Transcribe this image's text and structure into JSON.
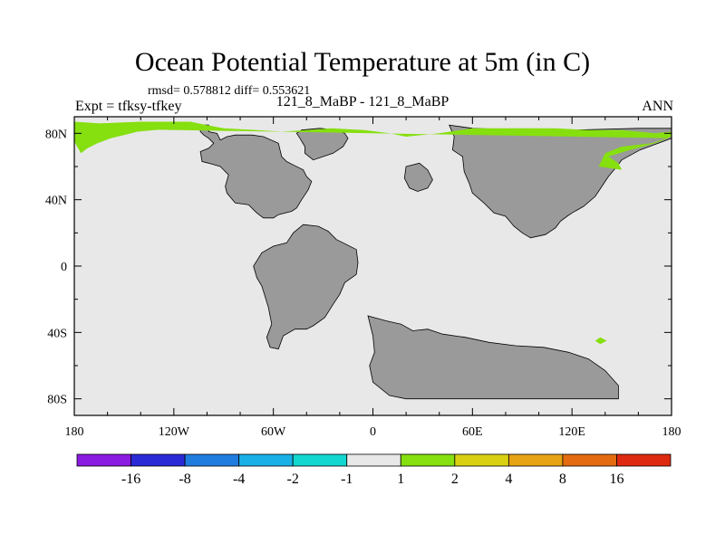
{
  "header": {
    "title": "Ocean Potential Temperature at 5m (in C)",
    "stats": "rmsd= 0.578812 diff= 0.553621",
    "expt": "Expt = tfksy-tfkey",
    "case": "121_8_MaBP - 121_8_MaBP",
    "season": "ANN"
  },
  "chart_data": {
    "type": "heatmap",
    "x_ticks": [
      "180",
      "120W",
      "60W",
      "0",
      "60E",
      "120E",
      "180"
    ],
    "y_ticks": [
      "80N",
      "40N",
      "0",
      "40S",
      "80S"
    ],
    "xlim": [
      -180,
      180
    ],
    "ylim": [
      -90,
      90
    ],
    "colorbar": {
      "labels": [
        "-16",
        "-8",
        "-4",
        "-2",
        "-1",
        "1",
        "2",
        "4",
        "8",
        "16"
      ],
      "colors": [
        "#8a1ae0",
        "#2a2ad6",
        "#1f7de0",
        "#18b0e6",
        "#12d6d0",
        "#e8e8e8",
        "#86df0f",
        "#d9d012",
        "#e6a213",
        "#e46b10",
        "#de2a10"
      ]
    },
    "colors": {
      "land": "#9a9a9a",
      "ocean_near_zero": "#e8e8e8",
      "warm_1_to_2": "#86df0f"
    },
    "land_masses": [
      {
        "name": "land-north-america",
        "poly": [
          [
            -99,
            85
          ],
          [
            -99,
            81
          ],
          [
            -94,
            80
          ],
          [
            -92,
            76
          ],
          [
            -88,
            78
          ],
          [
            -83,
            79
          ],
          [
            -73,
            79
          ],
          [
            -66,
            78
          ],
          [
            -57,
            74
          ],
          [
            -55,
            66
          ],
          [
            -52,
            63
          ],
          [
            -48,
            61
          ],
          [
            -42,
            58
          ],
          [
            -40,
            54
          ],
          [
            -37,
            51
          ],
          [
            -39,
            46
          ],
          [
            -43,
            40
          ],
          [
            -46,
            35
          ],
          [
            -49,
            33
          ],
          [
            -57,
            31
          ],
          [
            -60,
            29
          ],
          [
            -66,
            29
          ],
          [
            -70,
            32
          ],
          [
            -75,
            37
          ],
          [
            -83,
            38
          ],
          [
            -88,
            44
          ],
          [
            -89,
            48
          ],
          [
            -87,
            55
          ],
          [
            -92,
            60
          ],
          [
            -99,
            62
          ],
          [
            -103,
            63
          ],
          [
            -104,
            69
          ],
          [
            -99,
            71
          ],
          [
            -96,
            74
          ],
          [
            -99,
            77
          ],
          [
            -102,
            79
          ],
          [
            -104,
            81
          ],
          [
            -104,
            85
          ]
        ]
      },
      {
        "name": "land-greenland",
        "poly": [
          [
            -17,
            80
          ],
          [
            -15,
            77
          ],
          [
            -18,
            72
          ],
          [
            -24,
            68
          ],
          [
            -30,
            66
          ],
          [
            -36,
            64
          ],
          [
            -41,
            68
          ],
          [
            -41,
            72
          ],
          [
            -44,
            77
          ],
          [
            -46,
            80
          ],
          [
            -43,
            82
          ],
          [
            -32,
            83
          ],
          [
            -22,
            82
          ]
        ]
      },
      {
        "name": "land-south-america",
        "poly": [
          [
            -42,
            25
          ],
          [
            -33,
            24
          ],
          [
            -27,
            21
          ],
          [
            -22,
            16
          ],
          [
            -18,
            14
          ],
          [
            -10,
            10
          ],
          [
            -9,
            2
          ],
          [
            -10,
            -5
          ],
          [
            -17,
            -10
          ],
          [
            -20,
            -17
          ],
          [
            -24,
            -23
          ],
          [
            -29,
            -31
          ],
          [
            -36,
            -36
          ],
          [
            -40,
            -38
          ],
          [
            -47,
            -38
          ],
          [
            -54,
            -42
          ],
          [
            -57,
            -50
          ],
          [
            -62,
            -49
          ],
          [
            -64,
            -43
          ],
          [
            -61,
            -35
          ],
          [
            -63,
            -25
          ],
          [
            -67,
            -12
          ],
          [
            -70,
            -7
          ],
          [
            -72,
            0
          ],
          [
            -67,
            8
          ],
          [
            -60,
            12
          ],
          [
            -52,
            14
          ],
          [
            -48,
            20
          ]
        ]
      },
      {
        "name": "land-eurasia",
        "poly": [
          [
            46,
            85
          ],
          [
            49,
            78
          ],
          [
            48,
            70
          ],
          [
            54,
            66
          ],
          [
            55,
            57
          ],
          [
            58,
            50
          ],
          [
            60,
            44
          ],
          [
            67,
            38
          ],
          [
            73,
            32
          ],
          [
            80,
            30
          ],
          [
            85,
            24
          ],
          [
            90,
            20
          ],
          [
            95,
            17
          ],
          [
            104,
            19
          ],
          [
            110,
            23
          ],
          [
            113,
            27
          ],
          [
            117,
            30
          ],
          [
            120,
            32
          ],
          [
            127,
            36
          ],
          [
            134,
            42
          ],
          [
            138,
            48
          ],
          [
            142,
            54
          ],
          [
            147,
            60
          ],
          [
            150,
            64
          ],
          [
            161,
            70
          ],
          [
            172,
            74
          ],
          [
            180,
            77
          ],
          [
            180,
            83
          ],
          [
            160,
            83
          ],
          [
            120,
            82
          ],
          [
            90,
            82
          ],
          [
            60,
            83
          ]
        ]
      },
      {
        "name": "land-europe-island",
        "poly": [
          [
            20,
            60
          ],
          [
            28,
            62
          ],
          [
            33,
            58
          ],
          [
            36,
            52
          ],
          [
            33,
            47
          ],
          [
            27,
            45
          ],
          [
            22,
            47
          ],
          [
            19,
            53
          ]
        ]
      },
      {
        "name": "land-africa-east",
        "poly": [
          [
            -3,
            -30
          ],
          [
            8,
            -33
          ],
          [
            17,
            -35
          ],
          [
            24,
            -39
          ],
          [
            33,
            -38
          ],
          [
            42,
            -41
          ],
          [
            56,
            -43
          ],
          [
            70,
            -46
          ],
          [
            86,
            -48
          ],
          [
            103,
            -49
          ],
          [
            118,
            -52
          ],
          [
            130,
            -56
          ],
          [
            140,
            -63
          ],
          [
            148,
            -72
          ],
          [
            148,
            -80
          ],
          [
            108,
            -80
          ],
          [
            80,
            -80
          ],
          [
            50,
            -80
          ],
          [
            20,
            -80
          ],
          [
            10,
            -78
          ],
          [
            0,
            -70
          ],
          [
            -2,
            -60
          ],
          [
            1,
            -52
          ],
          [
            0,
            -42
          ]
        ]
      }
    ],
    "ice_edge": [
      {
        "name": "warm-band-arctic",
        "poly": [
          [
            -180,
            83
          ],
          [
            -164,
            86
          ],
          [
            -140,
            87
          ],
          [
            -110,
            87
          ],
          [
            -100,
            85
          ],
          [
            -90,
            83
          ],
          [
            -70,
            82
          ],
          [
            -55,
            81
          ],
          [
            -40,
            82
          ],
          [
            -25,
            83
          ],
          [
            -5,
            82
          ],
          [
            10,
            80
          ],
          [
            20,
            78
          ],
          [
            40,
            80
          ],
          [
            60,
            83
          ],
          [
            80,
            83
          ],
          [
            110,
            83
          ],
          [
            130,
            82
          ],
          [
            150,
            82
          ],
          [
            170,
            80
          ],
          [
            180,
            81
          ],
          [
            180,
            78
          ],
          [
            168,
            74
          ],
          [
            150,
            72
          ],
          [
            140,
            68
          ],
          [
            136,
            60
          ],
          [
            150,
            58
          ],
          [
            148,
            62
          ],
          [
            142,
            66
          ],
          [
            155,
            70
          ],
          [
            170,
            74
          ],
          [
            178,
            77
          ],
          [
            180,
            77
          ]
        ]
      },
      {
        "name": "warm-band-west",
        "poly": [
          [
            -180,
            87
          ],
          [
            -180,
            75
          ],
          [
            -176,
            68
          ],
          [
            -172,
            71
          ],
          [
            -166,
            74
          ],
          [
            -158,
            77
          ],
          [
            -150,
            79
          ],
          [
            -142,
            81
          ],
          [
            -132,
            82
          ],
          [
            -120,
            83
          ]
        ]
      },
      {
        "name": "warm-spot-indian",
        "poly": [
          [
            134,
            -45
          ],
          [
            137,
            -43
          ],
          [
            141,
            -45
          ],
          [
            137,
            -47
          ]
        ]
      }
    ]
  }
}
